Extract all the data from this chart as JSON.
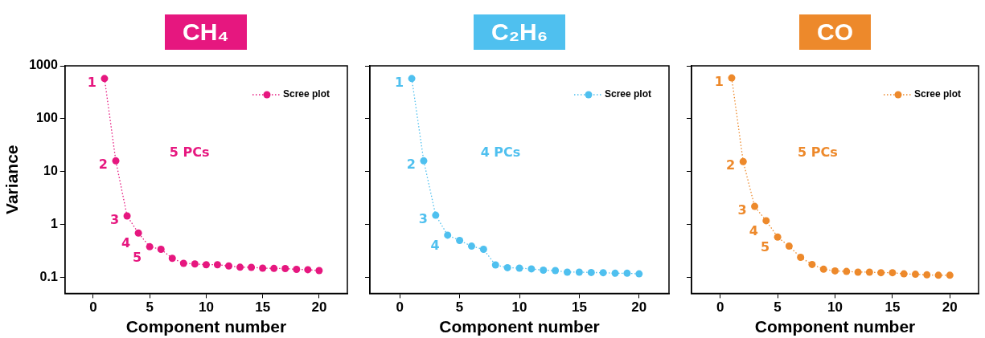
{
  "chart_data": [
    {
      "type": "line",
      "title": "CH₄",
      "xlabel": "Component number",
      "ylabel": "Variance",
      "x": [
        1,
        2,
        3,
        4,
        5,
        6,
        7,
        8,
        9,
        10,
        11,
        12,
        13,
        14,
        15,
        16,
        17,
        18,
        19,
        20
      ],
      "series": [
        {
          "name": "Scree plot",
          "color": "#e6177f",
          "values": [
            575,
            16,
            1.45,
            0.69,
            0.38,
            0.34,
            0.23,
            0.185,
            0.18,
            0.174,
            0.174,
            0.165,
            0.156,
            0.155,
            0.15,
            0.148,
            0.147,
            0.142,
            0.14,
            0.135
          ]
        }
      ],
      "log": "y",
      "ylim": [
        0.05,
        1000
      ],
      "yticks": [
        0.1,
        1,
        10,
        100,
        1000
      ],
      "xlim": [
        -2.5,
        22.5
      ],
      "xticks": [
        0,
        5,
        10,
        15,
        20
      ],
      "grid": false,
      "legend": "top right",
      "marker": "circle",
      "line_style": "dotted",
      "annotations": [
        {
          "text": "1",
          "x": 1,
          "y": 575
        },
        {
          "text": "2",
          "x": 2,
          "y": 16
        },
        {
          "text": "3",
          "x": 3,
          "y": 1.45
        },
        {
          "text": "4",
          "x": 4,
          "y": 0.69
        },
        {
          "text": "5",
          "x": 5,
          "y": 0.38
        },
        "5 PCs"
      ]
    },
    {
      "type": "line",
      "title": "C₂H₆",
      "xlabel": "Component number",
      "x": [
        1,
        2,
        3,
        4,
        5,
        6,
        7,
        8,
        9,
        10,
        11,
        12,
        13,
        14,
        15,
        16,
        17,
        18,
        19,
        20
      ],
      "series": [
        {
          "name": "Scree plot",
          "color": "#4fc0ef",
          "values": [
            575,
            16,
            1.5,
            0.63,
            0.5,
            0.39,
            0.34,
            0.172,
            0.153,
            0.15,
            0.145,
            0.137,
            0.135,
            0.126,
            0.126,
            0.124,
            0.123,
            0.12,
            0.12,
            0.117
          ]
        }
      ],
      "log": "y",
      "ylim": [
        0.05,
        1000
      ],
      "yticks": [
        0.1,
        1,
        10,
        100,
        1000
      ],
      "xlim": [
        -2.5,
        22.5
      ],
      "xticks": [
        0,
        5,
        10,
        15,
        20
      ],
      "tick_labels": "x",
      "grid": false,
      "legend": "top right",
      "marker": "circle",
      "line_style": "dotted",
      "annotations": [
        {
          "text": "1",
          "x": 1,
          "y": 575
        },
        {
          "text": "2",
          "x": 2,
          "y": 16
        },
        {
          "text": "3",
          "x": 3,
          "y": 1.5
        },
        {
          "text": "4",
          "x": 4,
          "y": 0.63
        },
        "4 PCs"
      ]
    },
    {
      "type": "line",
      "title": "CO",
      "xlabel": "Component number",
      "x": [
        1,
        2,
        3,
        4,
        5,
        6,
        7,
        8,
        9,
        10,
        11,
        12,
        13,
        14,
        15,
        16,
        17,
        18,
        19,
        20
      ],
      "series": [
        {
          "name": "Scree plot",
          "color": "#ed892b",
          "values": [
            590,
            15.5,
            2.2,
            1.18,
            0.58,
            0.39,
            0.24,
            0.176,
            0.143,
            0.133,
            0.13,
            0.126,
            0.126,
            0.123,
            0.123,
            0.117,
            0.115,
            0.112,
            0.11,
            0.11
          ]
        }
      ],
      "log": "y",
      "ylim": [
        0.05,
        1000
      ],
      "yticks": [
        0.1,
        1,
        10,
        100,
        1000
      ],
      "xlim": [
        -2.5,
        22.5
      ],
      "xticks": [
        0,
        5,
        10,
        15,
        20
      ],
      "tick_labels": "x",
      "grid": false,
      "legend": "top right",
      "marker": "circle",
      "line_style": "dotted",
      "annotations": [
        {
          "text": "1",
          "x": 1,
          "y": 590
        },
        {
          "text": "2",
          "x": 2,
          "y": 15.5
        },
        {
          "text": "3",
          "x": 3,
          "y": 2.2
        },
        {
          "text": "4",
          "x": 4,
          "y": 1.18
        },
        {
          "text": "5",
          "x": 5,
          "y": 0.58
        },
        "5 PCs"
      ]
    }
  ]
}
